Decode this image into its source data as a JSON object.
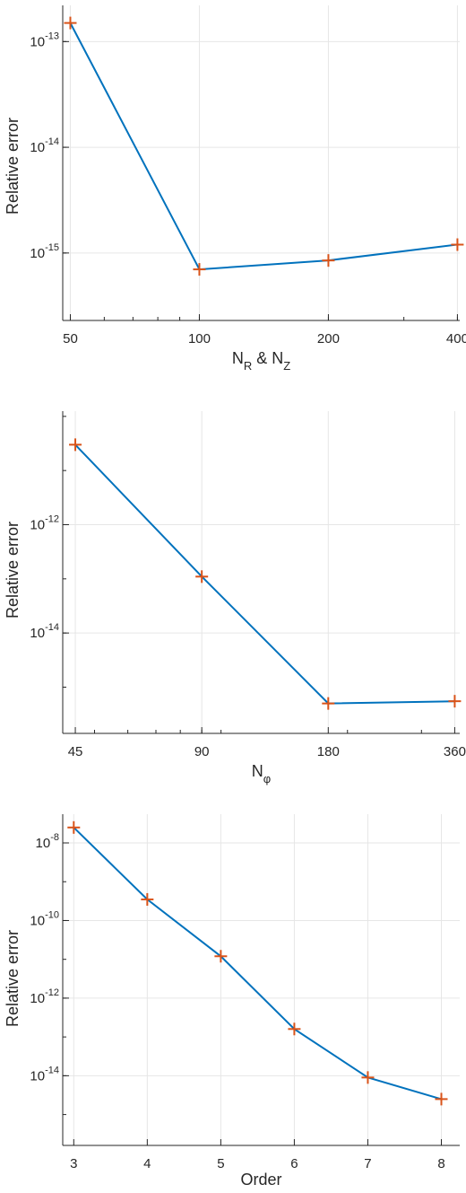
{
  "colors": {
    "line": "#0072BD",
    "marker": "#D95319",
    "grid": "#e6e6e6",
    "axis": "#262626"
  },
  "chart_data": [
    {
      "type": "line",
      "xscale": "log2",
      "yscale": "log",
      "grid": true,
      "marker": "plus",
      "xlabel": "N_R & N_Z",
      "xlabel_parts": {
        "n1": "N",
        "s1": "R",
        "amp": " & ",
        "n2": "N",
        "s2": "Z"
      },
      "ylabel": "Relative error",
      "x": [
        50,
        100,
        200,
        400
      ],
      "y": [
        1.5e-13,
        7e-16,
        8.5e-16,
        1.2e-15
      ],
      "xticks": [
        50,
        100,
        200,
        400
      ],
      "xtick_labels": [
        "50",
        "100",
        "200",
        "400"
      ],
      "yticks": [
        1e-13,
        1e-14,
        1e-15
      ],
      "ytick_exponents": [
        "-13",
        "-14",
        "-15"
      ]
    },
    {
      "type": "line",
      "xscale": "log2",
      "yscale": "log",
      "grid": true,
      "marker": "plus",
      "xlabel": "N_φ",
      "xlabel_parts": {
        "n1": "N",
        "s1": "φ"
      },
      "ylabel": "Relative error",
      "x": [
        45,
        90,
        180,
        360
      ],
      "y": [
        3e-11,
        1.1e-13,
        5e-16,
        5.5e-16
      ],
      "xticks": [
        45,
        90,
        180,
        360
      ],
      "xtick_labels": [
        "45",
        "90",
        "180",
        "360"
      ],
      "yticks": [
        1e-12,
        1e-14
      ],
      "ytick_exponents": [
        "-12",
        "-14"
      ]
    },
    {
      "type": "line",
      "xscale": "linear",
      "yscale": "log",
      "grid": true,
      "marker": "plus",
      "xlabel": "Order",
      "ylabel": "Relative error",
      "x": [
        3,
        4,
        5,
        6,
        7,
        8
      ],
      "y": [
        2.5e-08,
        3.5e-10,
        1.2e-11,
        1.6e-13,
        9e-15,
        2.5e-15
      ],
      "xticks": [
        3,
        4,
        5,
        6,
        7,
        8
      ],
      "xtick_labels": [
        "3",
        "4",
        "5",
        "6",
        "7",
        "8"
      ],
      "yticks": [
        1e-08,
        1e-10,
        1e-12,
        1e-14
      ],
      "ytick_exponents": [
        "-8",
        "-10",
        "-12",
        "-14"
      ]
    }
  ]
}
